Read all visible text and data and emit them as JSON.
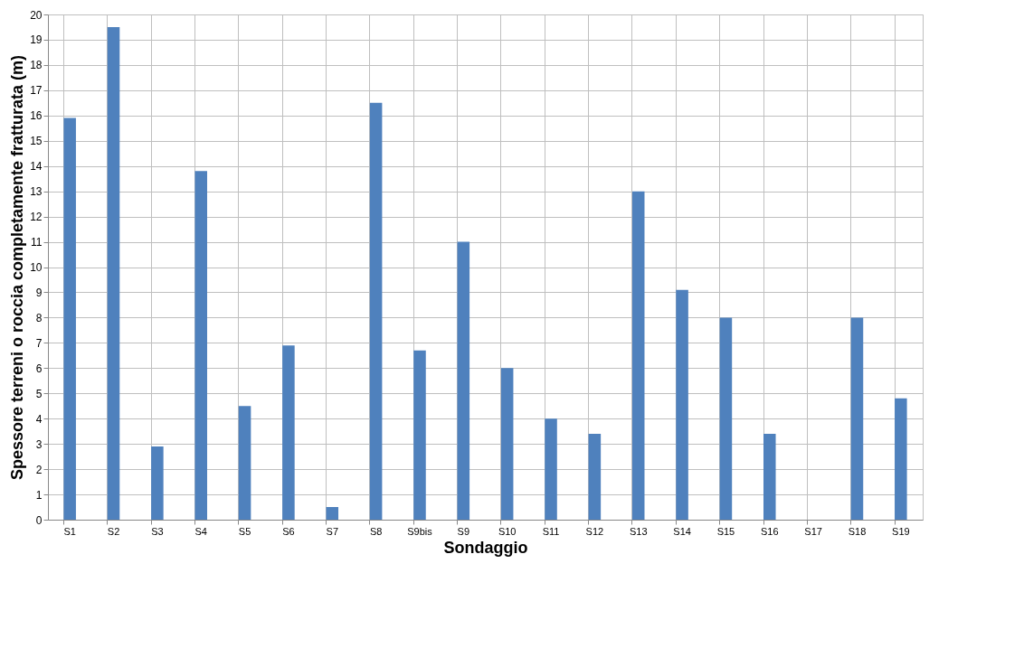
{
  "chart_data": {
    "type": "bar",
    "xlabel": "Sondaggio",
    "ylabel": "Spessore terreni o roccia completamente fratturata (m)",
    "categories": [
      "S1",
      "S2",
      "S3",
      "S4",
      "S5",
      "S6",
      "S7",
      "S8",
      "S9bis",
      "S9",
      "S10",
      "S11",
      "S12",
      "S13",
      "S14",
      "S15",
      "S16",
      "S17",
      "S18",
      "S19"
    ],
    "values": [
      15.9,
      19.5,
      2.9,
      13.8,
      4.5,
      6.9,
      0.5,
      16.5,
      6.7,
      11.0,
      6.0,
      4.0,
      3.4,
      13.0,
      9.1,
      8.0,
      3.4,
      null,
      8.0,
      4.8
    ],
    "color": "#4f81bd",
    "ylim": [
      0,
      20
    ],
    "yticks": [
      0,
      1,
      2,
      3,
      4,
      5,
      6,
      7,
      8,
      9,
      10,
      11,
      12,
      13,
      14,
      15,
      16,
      17,
      18,
      19,
      20
    ],
    "grid": true
  }
}
